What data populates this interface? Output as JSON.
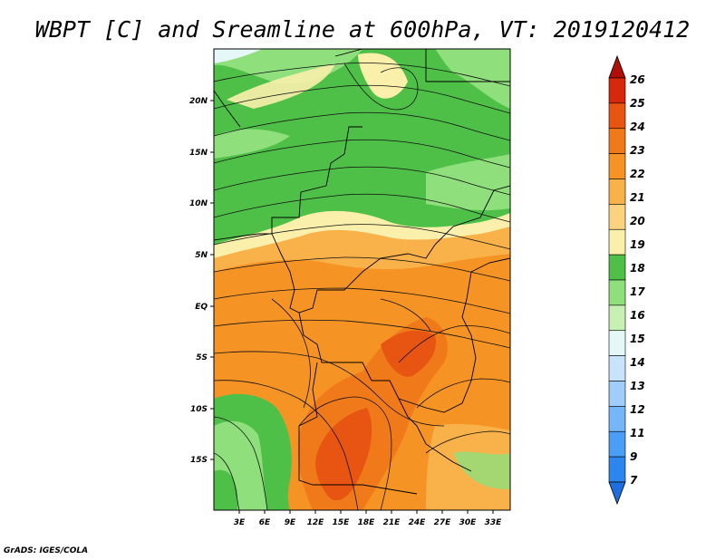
{
  "title": "WBPT [C] and Sreamline at 600hPa, VT: 2019120412",
  "footer": "GrADS: IGES/COLA",
  "chart_data": {
    "type": "heatmap",
    "variable": "wet-bulb potential temperature",
    "units": "C",
    "level": "600hPa",
    "valid_time": "2019120412",
    "overlay": "streamlines",
    "lon_range": [
      0,
      35
    ],
    "lat_range": [
      -20,
      24
    ],
    "lon_ticks": [
      3,
      6,
      9,
      12,
      15,
      18,
      21,
      24,
      27,
      30,
      33
    ],
    "lon_tick_labels": [
      "3E",
      "6E",
      "9E",
      "12E",
      "15E",
      "18E",
      "21E",
      "24E",
      "27E",
      "30E",
      "33E"
    ],
    "lat_ticks": [
      20,
      15,
      10,
      5,
      0,
      -5,
      -10,
      -15
    ],
    "lat_tick_labels": [
      "20N",
      "15N",
      "10N",
      "5N",
      "EQ",
      "5S",
      "10S",
      "15S"
    ],
    "colorbar": {
      "levels": [
        7,
        9,
        11,
        12,
        13,
        14,
        15,
        16,
        17,
        18,
        19,
        20,
        21,
        22,
        23,
        24,
        25,
        26
      ],
      "labels": [
        "7",
        "9",
        "11",
        "12",
        "13",
        "14",
        "15",
        "16",
        "17",
        "18",
        "19",
        "20",
        "21",
        "22",
        "23",
        "24",
        "25",
        "26"
      ],
      "colors": [
        "#1e6ee0",
        "#2d86ee",
        "#4a9ef5",
        "#74b6f8",
        "#a0cdfa",
        "#c8e3fc",
        "#e6f7f7",
        "#c6f0b4",
        "#8fdf7c",
        "#4ec048",
        "#faf0ab",
        "#fbd27e",
        "#f9b24a",
        "#f59425",
        "#f07a1a",
        "#e85412",
        "#d8280c",
        "#b00f08"
      ]
    },
    "regions": {
      "north_green": {
        "lat_from": 6,
        "lat_to": 24,
        "value_range": [
          16,
          18
        ]
      },
      "equatorial_orange": {
        "lat_from": -10,
        "lat_to": 6,
        "value_range": [
          20,
          22
        ]
      },
      "southern_hot": {
        "lat_from": -20,
        "lat_to": -3,
        "value_range": [
          22,
          24
        ]
      },
      "southwest_green": {
        "lat_from": -20,
        "lat_to": -10,
        "value_range": [
          16,
          18
        ]
      }
    }
  }
}
